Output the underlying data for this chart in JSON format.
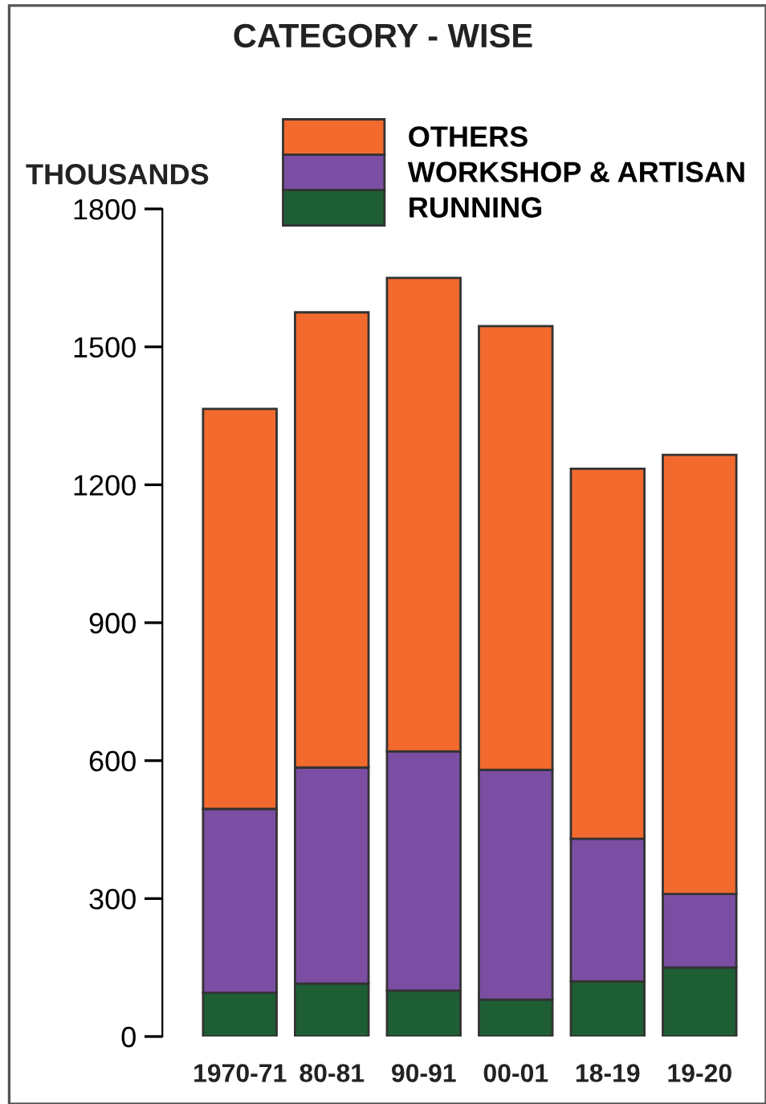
{
  "chart_data": {
    "type": "bar",
    "stacked": true,
    "title": "CATEGORY - WISE",
    "ylabel": "THOUSANDS",
    "categories": [
      "1970-71",
      "80-81",
      "90-91",
      "00-01",
      "18-19",
      "19-20"
    ],
    "series": [
      {
        "name": "RUNNING",
        "color": "#1e5e34",
        "values": [
          95,
          115,
          100,
          80,
          120,
          150
        ]
      },
      {
        "name": "WORKSHOP & ARTISAN",
        "color": "#7b4ea3",
        "values": [
          400,
          470,
          520,
          500,
          310,
          160
        ]
      },
      {
        "name": "OTHERS",
        "color": "#f26a2e",
        "values": [
          870,
          990,
          1030,
          965,
          805,
          955
        ]
      }
    ],
    "ylim": [
      0,
      1800
    ],
    "yticks": [
      0,
      300,
      600,
      900,
      1200,
      1500,
      1800
    ],
    "grid": false,
    "legend": "top"
  }
}
